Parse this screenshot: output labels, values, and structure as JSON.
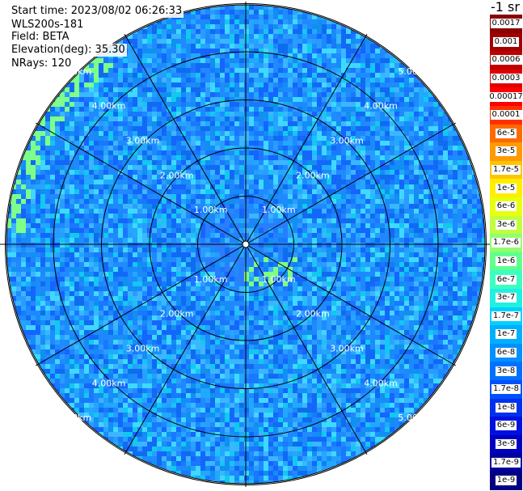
{
  "info": {
    "start_time": "Start time: 2023/08/02 06:26:33",
    "instrument": "WLS200s-181",
    "field": "Field: BETA",
    "elevation": "Elevation(deg): 35.30",
    "nrays": "NRays: 120"
  },
  "colorbar": {
    "unit": "-1 sr",
    "labels": [
      "0.0017",
      "0.001",
      "0.0006",
      "0.0003",
      "0.00017",
      "0.0001",
      "6e-5",
      "3e-5",
      "1.7e-5",
      "1e-5",
      "6e-6",
      "3e-6",
      "1.7e-6",
      "1e-6",
      "6e-7",
      "3e-7",
      "1.7e-7",
      "1e-7",
      "6e-8",
      "3e-8",
      "1.7e-8",
      "1e-8",
      "6e-9",
      "3e-9",
      "1.7e-9",
      "1e-9"
    ],
    "colors": [
      "#8b0000",
      "#a00000",
      "#c00000",
      "#e00000",
      "#ff0000",
      "#ff3000",
      "#ff6a00",
      "#ff9a00",
      "#ffc400",
      "#ffee00",
      "#e8ff10",
      "#c0ff40",
      "#90ff70",
      "#60ff90",
      "#3affc0",
      "#20f0e0",
      "#00d0ff",
      "#00b0ff",
      "#0090ff",
      "#0070ff",
      "#0050ff",
      "#0030f0",
      "#0010e0",
      "#0000c0",
      "#0000a0",
      "#000080"
    ]
  },
  "chart_data": {
    "type": "heatmap",
    "projection": "polar",
    "field": "BETA",
    "nrays": 120,
    "elevation_deg": 35.3,
    "ring_labels": [
      "1.00km",
      "2.00km",
      "3.00km",
      "4.00km",
      "5.00km"
    ],
    "ring_range_km": [
      1,
      2,
      3,
      4,
      5
    ],
    "max_range_km": 5.7,
    "spokes_deg": [
      0,
      30,
      60,
      90,
      120,
      150,
      180,
      210,
      240,
      270,
      300,
      330
    ],
    "dominant_level": "1e-7",
    "features": [
      {
        "type": "higher-value patches",
        "level": "6e-7",
        "region": "near center, south-east"
      },
      {
        "type": "higher-value patches",
        "level": "1.7e-6",
        "region": "outer north-west edge"
      }
    ]
  }
}
